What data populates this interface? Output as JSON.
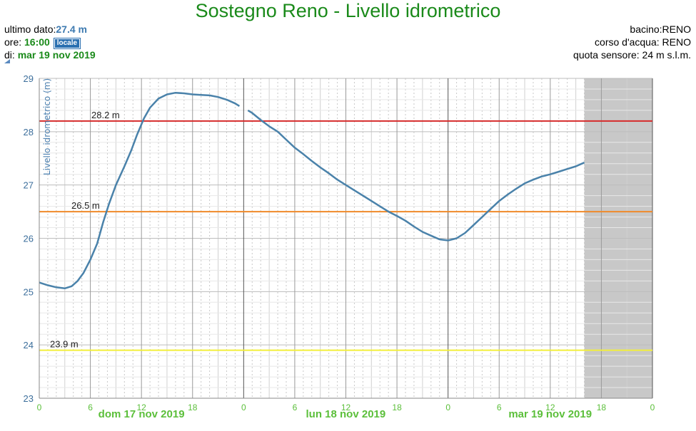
{
  "header": {
    "title": "Sostegno Reno - Livello idrometrico",
    "last_value_label": "ultimo dato:",
    "last_value": "27.4 m",
    "time_label": "ore: ",
    "time_value": "16:00",
    "time_badge": "locale",
    "date_label": "di: ",
    "date_value": "mar 19 nov 2019",
    "basin": "bacino:RENO",
    "watercourse": "corso d'acqua: RENO",
    "sensor_elevation": "quota sensore: 24 m s.l.m."
  },
  "colors": {
    "title": "#1a8a1a",
    "series": "#4a82aa",
    "threshold_red": "#d62b2b",
    "threshold_orange": "#f08a2a",
    "threshold_yellow": "#f2ef3a",
    "tick_green": "#5bbf3a",
    "shade": "#c8c8c8"
  },
  "chart_data": {
    "type": "line",
    "ylabel": "Livello idrometrico (m)",
    "ylim": [
      23,
      29
    ],
    "yticks": [
      23,
      24,
      25,
      26,
      27,
      28,
      29
    ],
    "xlim_hours": [
      0,
      72
    ],
    "xticks": [
      {
        "h": 0,
        "label": "0"
      },
      {
        "h": 6,
        "label": "6"
      },
      {
        "h": 12,
        "label": "12"
      },
      {
        "h": 18,
        "label": "18"
      },
      {
        "h": 24,
        "label": "0"
      },
      {
        "h": 30,
        "label": "6"
      },
      {
        "h": 36,
        "label": "12"
      },
      {
        "h": 42,
        "label": "18"
      },
      {
        "h": 48,
        "label": "0"
      },
      {
        "h": 54,
        "label": "6"
      },
      {
        "h": 60,
        "label": "12"
      },
      {
        "h": 66,
        "label": "18"
      },
      {
        "h": 72,
        "label": "0"
      }
    ],
    "day_labels": [
      {
        "label": "dom 17 nov 2019",
        "h": 12
      },
      {
        "label": "lun 18 nov 2019",
        "h": 36
      },
      {
        "label": "mar 19 nov 2019",
        "h": 60
      }
    ],
    "thresholds": [
      {
        "value": 28.2,
        "label": "28.2 m",
        "color": "#d62b2b"
      },
      {
        "value": 26.5,
        "label": "26.5 m",
        "color": "#f08a2a"
      },
      {
        "value": 23.9,
        "label": "23.9 m",
        "color": "#f2ef3a"
      }
    ],
    "future_shade_from_h": 64,
    "series": [
      {
        "segments": [
          [
            [
              0,
              25.17
            ],
            [
              1,
              25.12
            ],
            [
              2,
              25.08
            ],
            [
              3,
              25.06
            ],
            [
              3.8,
              25.1
            ],
            [
              4.5,
              25.2
            ],
            [
              5.2,
              25.35
            ],
            [
              6,
              25.6
            ],
            [
              6.8,
              25.9
            ],
            [
              7.5,
              26.3
            ],
            [
              8.2,
              26.65
            ],
            [
              9,
              27.0
            ],
            [
              10,
              27.35
            ],
            [
              10.8,
              27.65
            ],
            [
              11.5,
              27.95
            ],
            [
              12.3,
              28.25
            ],
            [
              13,
              28.45
            ],
            [
              14,
              28.62
            ],
            [
              15,
              28.7
            ],
            [
              16,
              28.73
            ],
            [
              17,
              28.72
            ],
            [
              18,
              28.7
            ],
            [
              19,
              28.69
            ],
            [
              20,
              28.68
            ],
            [
              21,
              28.65
            ],
            [
              22,
              28.6
            ],
            [
              23,
              28.53
            ],
            [
              23.5,
              28.48
            ]
          ],
          [
            [
              24.5,
              28.4
            ],
            [
              25,
              28.35
            ],
            [
              26,
              28.22
            ],
            [
              27,
              28.1
            ],
            [
              28,
              28.0
            ],
            [
              29,
              27.85
            ],
            [
              30,
              27.7
            ],
            [
              31,
              27.58
            ],
            [
              32,
              27.45
            ],
            [
              33,
              27.33
            ],
            [
              34,
              27.22
            ],
            [
              35,
              27.1
            ],
            [
              36,
              27.0
            ],
            [
              37,
              26.9
            ],
            [
              38,
              26.8
            ],
            [
              39,
              26.7
            ],
            [
              40,
              26.6
            ],
            [
              41,
              26.5
            ],
            [
              42,
              26.42
            ],
            [
              43,
              26.33
            ],
            [
              44,
              26.22
            ],
            [
              45,
              26.12
            ],
            [
              46,
              26.05
            ],
            [
              47,
              25.98
            ],
            [
              48,
              25.96
            ],
            [
              49,
              26.0
            ],
            [
              50,
              26.1
            ],
            [
              51,
              26.25
            ],
            [
              52,
              26.4
            ],
            [
              53,
              26.55
            ],
            [
              54,
              26.7
            ],
            [
              55,
              26.82
            ],
            [
              56,
              26.93
            ],
            [
              57,
              27.03
            ],
            [
              58,
              27.1
            ],
            [
              59,
              27.16
            ],
            [
              60,
              27.2
            ],
            [
              61,
              27.25
            ],
            [
              62,
              27.3
            ],
            [
              63,
              27.35
            ],
            [
              64,
              27.42
            ]
          ]
        ]
      }
    ]
  }
}
